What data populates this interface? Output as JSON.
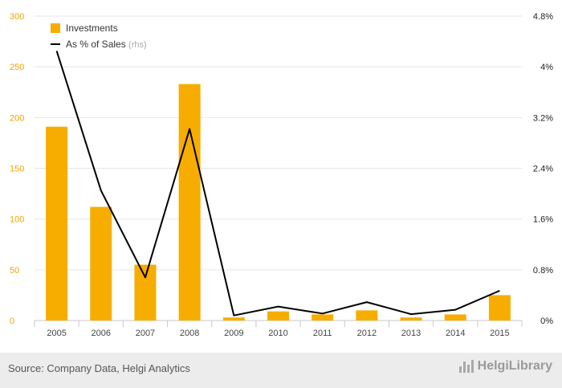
{
  "chart_data": {
    "type": "bar",
    "categories": [
      "2005",
      "2006",
      "2007",
      "2008",
      "2009",
      "2010",
      "2011",
      "2012",
      "2013",
      "2014",
      "2015"
    ],
    "series": [
      {
        "name": "Investments",
        "type": "bar",
        "axis": "left",
        "values": [
          191,
          112,
          55,
          233,
          3,
          9,
          6,
          10,
          3,
          6,
          25
        ]
      },
      {
        "name": "As % of Sales",
        "type": "line",
        "axis": "right",
        "values": [
          4.25,
          2.05,
          0.68,
          3.02,
          0.08,
          0.22,
          0.11,
          0.29,
          0.1,
          0.17,
          0.47
        ]
      }
    ],
    "legend": [
      {
        "label": "Investments",
        "suffix": ""
      },
      {
        "label": "As % of Sales",
        "suffix": "(rhs)"
      }
    ],
    "y_left": {
      "ticks": [
        0,
        50,
        100,
        150,
        200,
        250,
        300
      ],
      "ylim": [
        0,
        300
      ]
    },
    "y_right": {
      "ticks": [
        "0%",
        "0.8%",
        "1.6%",
        "2.4%",
        "3.2%",
        "4%",
        "4.8%"
      ],
      "ylim": [
        0,
        4.8
      ]
    },
    "grid": true,
    "legend_position": "top-left",
    "colors": {
      "bar": "#f7ad00",
      "line": "#000000",
      "left_axis_text": "#f2a400",
      "grid": "#e6e6e6"
    }
  },
  "footer": {
    "source": "Source: Company Data, Helgi Analytics",
    "brand": "HelgiLibrary"
  }
}
